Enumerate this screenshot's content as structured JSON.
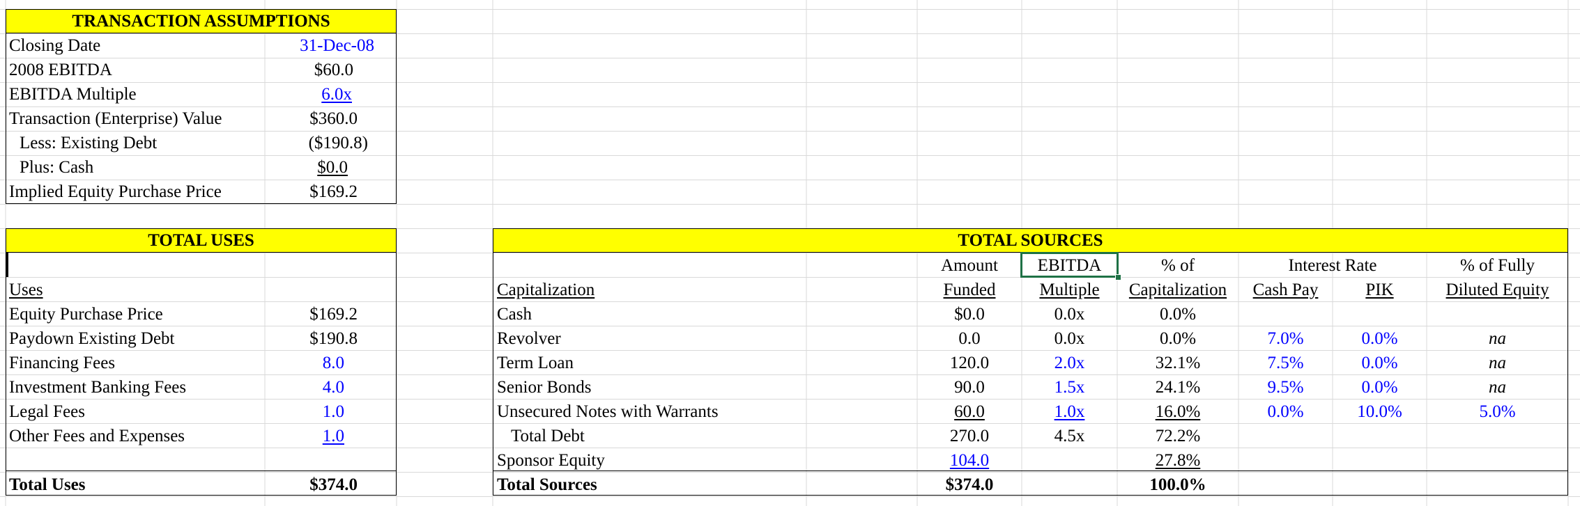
{
  "assumptions": {
    "title": "TRANSACTION ASSUMPTIONS",
    "rows": [
      {
        "label": "Closing Date",
        "value": "31-Dec-08"
      },
      {
        "label": "2008 EBITDA",
        "value": "$60.0"
      },
      {
        "label": "EBITDA Multiple",
        "value": "6.0x"
      },
      {
        "label": "Transaction (Enterprise) Value",
        "value": "$360.0"
      },
      {
        "label": "Less: Existing Debt",
        "value": "($190.8)"
      },
      {
        "label": "Plus: Cash",
        "value": "$0.0"
      },
      {
        "label": "Implied Equity Purchase Price",
        "value": "$169.2"
      }
    ]
  },
  "uses": {
    "title": "TOTAL USES",
    "header": "Uses",
    "rows": [
      {
        "label": "Equity Purchase Price",
        "value": "$169.2"
      },
      {
        "label": "Paydown Existing Debt",
        "value": "$190.8"
      },
      {
        "label": "Financing Fees",
        "value": "8.0"
      },
      {
        "label": "Investment Banking Fees",
        "value": "4.0"
      },
      {
        "label": "Legal Fees",
        "value": "1.0"
      },
      {
        "label": "Other Fees and Expenses",
        "value": "1.0"
      }
    ],
    "total_label": "Total Uses",
    "total_value": "$374.0"
  },
  "sources": {
    "title": "TOTAL SOURCES",
    "col_headers": {
      "amount_1": "Amount",
      "amount_2": "Funded",
      "ebitda_1": "EBITDA",
      "ebitda_2": "Multiple",
      "pct_1": "% of",
      "pct_2": "Capitalization",
      "interest_1": "Interest Rate",
      "cashpay": "Cash Pay",
      "pik": "PIK",
      "fd_1": "% of Fully",
      "fd_2": "Diluted Equity",
      "capitalization": "Capitalization"
    },
    "rows": [
      {
        "label": "Cash",
        "amount": "$0.0",
        "multiple": "0.0x",
        "pct": "0.0%",
        "cashpay": "",
        "pik": "",
        "fd": ""
      },
      {
        "label": "Revolver",
        "amount": "0.0",
        "multiple": "0.0x",
        "pct": "0.0%",
        "cashpay": "7.0%",
        "pik": "0.0%",
        "fd": "na"
      },
      {
        "label": "Term Loan",
        "amount": "120.0",
        "multiple": "2.0x",
        "pct": "32.1%",
        "cashpay": "7.5%",
        "pik": "0.0%",
        "fd": "na"
      },
      {
        "label": "Senior Bonds",
        "amount": "90.0",
        "multiple": "1.5x",
        "pct": "24.1%",
        "cashpay": "9.5%",
        "pik": "0.0%",
        "fd": "na"
      },
      {
        "label": "Unsecured Notes with Warrants",
        "amount": "60.0",
        "multiple": "1.0x",
        "pct": "16.0%",
        "cashpay": "0.0%",
        "pik": "10.0%",
        "fd": "5.0%"
      },
      {
        "label": "Total Debt",
        "amount": "270.0",
        "multiple": "4.5x",
        "pct": "72.2%",
        "cashpay": "",
        "pik": "",
        "fd": ""
      },
      {
        "label": "Sponsor Equity",
        "amount": "104.0",
        "multiple": "",
        "pct": "27.8%",
        "cashpay": "",
        "pik": "",
        "fd": ""
      }
    ],
    "total_label": "Total Sources",
    "total_amount": "$374.0",
    "total_pct": "100.0%"
  },
  "colors": {
    "input_blue": "#0000ff",
    "header_yellow": "#ffff00",
    "selection_green": "#1e7145",
    "gridline": "#d9d9d9"
  }
}
